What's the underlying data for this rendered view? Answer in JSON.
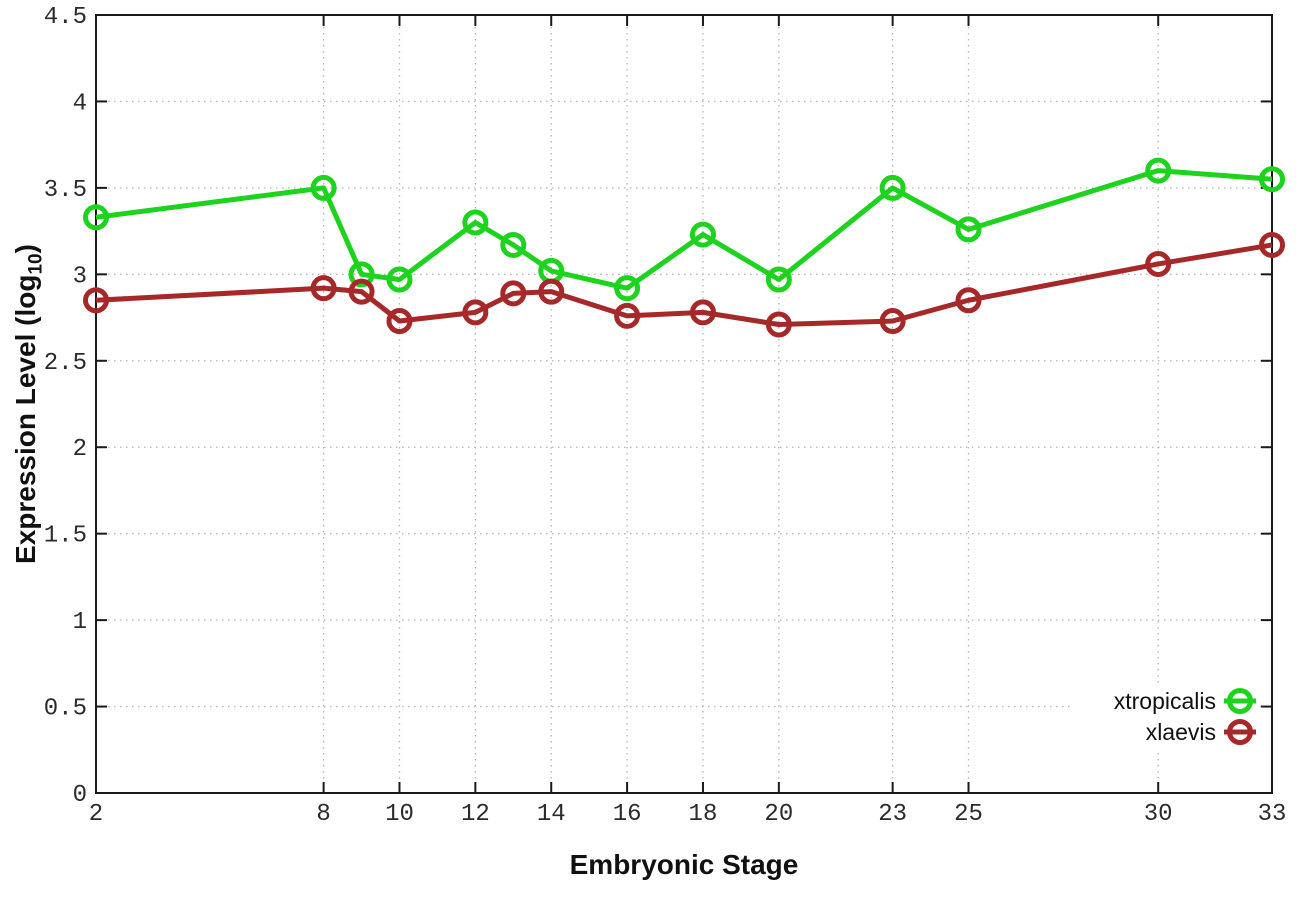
{
  "chart_data": {
    "type": "line",
    "title": "",
    "xlabel": "Embryonic Stage",
    "ylabel": "Expression Level (log10)",
    "xlim": [
      2,
      33
    ],
    "ylim": [
      0,
      4.5
    ],
    "x_ticks": [
      2,
      8,
      10,
      12,
      14,
      16,
      18,
      20,
      23,
      25,
      30,
      33
    ],
    "x_tick_labels": [
      "2",
      "8",
      "10",
      "12",
      "14",
      "16",
      "18",
      "20",
      "23",
      "25",
      "30",
      "33"
    ],
    "y_ticks": [
      0,
      0.5,
      1,
      1.5,
      2,
      2.5,
      3,
      3.5,
      4,
      4.5
    ],
    "y_tick_labels": [
      "0",
      "0.5",
      "1",
      "1.5",
      "2",
      "2.5",
      "3",
      "3.5",
      "4",
      "4.5"
    ],
    "grid": true,
    "legend_position": "inside-bottom-right",
    "series": [
      {
        "name": "xtropicalis",
        "color": "#1dd31d",
        "x": [
          2,
          8,
          9,
          10,
          12,
          13,
          14,
          16,
          18,
          20,
          23,
          25,
          30,
          33
        ],
        "y": [
          3.33,
          3.5,
          3.0,
          2.97,
          3.3,
          3.17,
          3.02,
          2.92,
          3.23,
          2.97,
          3.5,
          3.26,
          3.6,
          3.55
        ]
      },
      {
        "name": "xlaevis",
        "color": "#a62828",
        "x": [
          2,
          8,
          9,
          10,
          12,
          13,
          14,
          16,
          18,
          20,
          23,
          25,
          30,
          33
        ],
        "y": [
          2.85,
          2.92,
          2.9,
          2.73,
          2.78,
          2.89,
          2.9,
          2.76,
          2.78,
          2.71,
          2.73,
          2.85,
          3.06,
          3.17
        ]
      }
    ]
  },
  "labels": {
    "xlabel": "Embryonic Stage",
    "ylabel_main": "Expression Level (log",
    "ylabel_sub": "10",
    "ylabel_close": ")"
  },
  "colors": {
    "grid": "#b5b5b5",
    "axis": "#1a1a1a",
    "tick_text": "#2b2b2b",
    "background": "#ffffff"
  }
}
